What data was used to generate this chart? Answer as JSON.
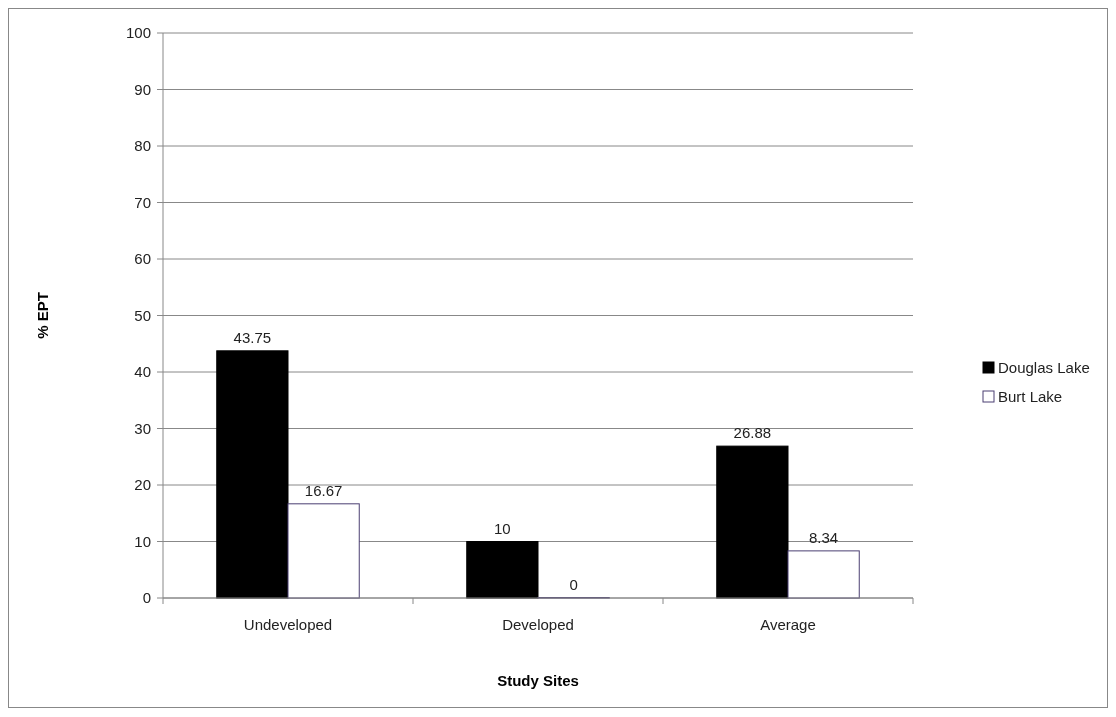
{
  "chart_data": {
    "type": "bar",
    "xlabel": "Study Sites",
    "ylabel": "% EPT",
    "categories": [
      "Undeveloped",
      "Developed",
      "Average"
    ],
    "series": [
      {
        "name": "Douglas Lake",
        "color": "#000000",
        "values": [
          43.75,
          10,
          26.88
        ]
      },
      {
        "name": "Burt Lake",
        "color": "#ffffff",
        "values": [
          16.67,
          0,
          8.34
        ]
      }
    ],
    "ylim": [
      0,
      100
    ],
    "yticks": [
      0,
      10,
      20,
      30,
      40,
      50,
      60,
      70,
      80,
      90,
      100
    ],
    "grid": "y",
    "legend": "right",
    "data_labels": true
  }
}
